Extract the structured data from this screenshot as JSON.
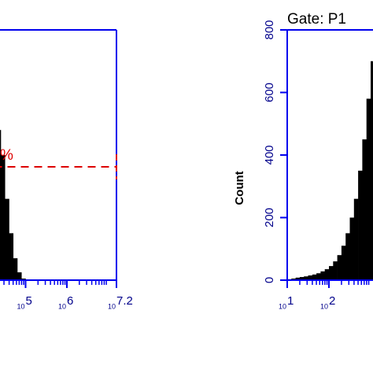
{
  "chart_data": [
    {
      "type": "histogram",
      "x_tick_base": "10",
      "xlim": [
        1,
        7.2
      ],
      "ylim": [
        0,
        800
      ],
      "xticks": [
        5,
        6,
        7.2
      ],
      "bins": [
        4.3,
        4.4,
        4.5,
        4.6,
        4.7,
        4.8,
        4.9,
        5.0
      ],
      "counts": [
        480,
        400,
        260,
        150,
        70,
        25,
        5
      ],
      "color": "#000000",
      "axis_color": "#0000ee",
      "annotation": "%",
      "annotation_color": "#dd0000"
    },
    {
      "type": "histogram",
      "title": "Gate: P1",
      "ylabel": "Count",
      "x_tick_base": "10",
      "xlim": [
        1,
        7.2
      ],
      "ylim": [
        0,
        800
      ],
      "xticks": [
        1,
        2
      ],
      "yticks": [
        0,
        200,
        400,
        600,
        800
      ],
      "bins": [
        1.0,
        1.1,
        1.2,
        1.3,
        1.4,
        1.5,
        1.6,
        1.7,
        1.8,
        1.9,
        2.0,
        2.1,
        2.2,
        2.3,
        2.4,
        2.5,
        2.6,
        2.7,
        2.8,
        2.9,
        3.0,
        3.1
      ],
      "counts": [
        3,
        5,
        8,
        10,
        12,
        15,
        18,
        22,
        28,
        35,
        45,
        60,
        80,
        110,
        150,
        200,
        260,
        350,
        450,
        580,
        700
      ],
      "color": "#000000",
      "axis_color": "#0000ee"
    }
  ]
}
